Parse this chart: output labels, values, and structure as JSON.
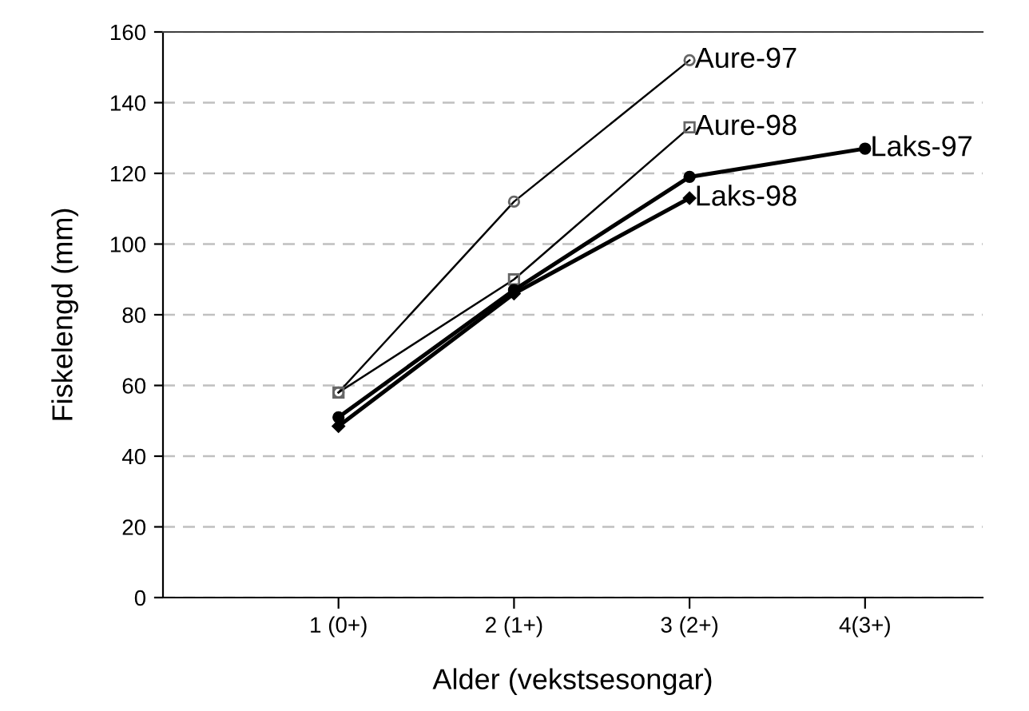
{
  "chart_data": {
    "type": "line",
    "xlabel": "Alder (vekstsesongar)",
    "ylabel": "Fiskelengd (mm)",
    "categories": [
      "1 (0+)",
      "2 (1+)",
      "3 (2+)",
      "4(3+)"
    ],
    "series": [
      {
        "name": "Aure-97",
        "color": "#000000",
        "marker": "circle",
        "values": [
          58,
          112,
          152,
          null
        ]
      },
      {
        "name": "Aure-98",
        "color": "#000000",
        "marker": "square",
        "values": [
          58,
          90,
          133,
          null
        ]
      },
      {
        "name": "Laks-97",
        "color": "#000000",
        "marker": "circle",
        "values": [
          51,
          87,
          119,
          127
        ]
      },
      {
        "name": "Laks-98",
        "color": "#000000",
        "marker": "diamond",
        "values": [
          48.5,
          86,
          113,
          null
        ]
      }
    ],
    "ylim": [
      0,
      160
    ],
    "yticks": [
      0,
      20,
      40,
      60,
      80,
      100,
      120,
      140,
      160
    ],
    "grid": "y",
    "legend": false
  }
}
